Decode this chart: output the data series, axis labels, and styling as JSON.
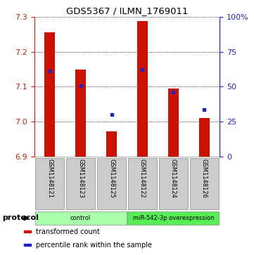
{
  "title": "GDS5367 / ILMN_1769011",
  "samples": [
    "GSM1148121",
    "GSM1148123",
    "GSM1148125",
    "GSM1148122",
    "GSM1148124",
    "GSM1148126"
  ],
  "bar_values": [
    7.255,
    7.148,
    6.972,
    7.288,
    7.095,
    7.01
  ],
  "dot_values": [
    7.145,
    7.103,
    7.02,
    7.148,
    7.085,
    7.035
  ],
  "bar_bottom": 6.9,
  "ylim_left": [
    6.9,
    7.3
  ],
  "ylim_right": [
    0,
    100
  ],
  "yticks_left": [
    6.9,
    7.0,
    7.1,
    7.2,
    7.3
  ],
  "yticks_right": [
    0,
    25,
    50,
    75,
    100
  ],
  "bar_color": "#cc1100",
  "dot_color": "#2222cc",
  "groups": [
    {
      "label": "control",
      "indices": [
        0,
        1,
        2
      ],
      "color": "#aaffaa"
    },
    {
      "label": "miR-542-3p overexpression",
      "indices": [
        3,
        4,
        5
      ],
      "color": "#55ee55"
    }
  ],
  "protocol_label": "protocol",
  "legend_items": [
    {
      "label": "transformed count",
      "color": "#cc1100"
    },
    {
      "label": "percentile rank within the sample",
      "color": "#2222cc"
    }
  ],
  "tick_color_left": "#cc2200",
  "tick_color_right": "#2222cc"
}
